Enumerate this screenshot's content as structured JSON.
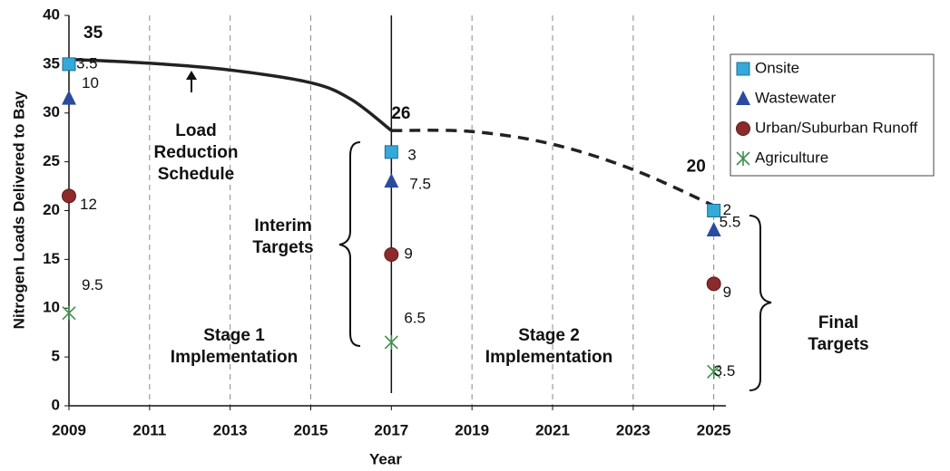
{
  "chart_data": {
    "type": "stacked-scatter",
    "xlabel": "Year",
    "ylabel": "Nitrogen Loads Delivered to Bay",
    "xlim": [
      2009,
      2025.3
    ],
    "xticks": [
      2009,
      2011,
      2013,
      2015,
      2017,
      2019,
      2021,
      2023,
      2025
    ],
    "ylim": [
      0,
      40
    ],
    "yticks": [
      0,
      5,
      10,
      15,
      20,
      25,
      30,
      35,
      40
    ],
    "x": [
      2009,
      2017,
      2025
    ],
    "totals": [
      35,
      26,
      20
    ],
    "series": [
      {
        "name": "Agriculture",
        "color": "#3f8f4f",
        "marker": "x",
        "values": [
          9.5,
          6.5,
          3.5
        ]
      },
      {
        "name": "Urban/Suburban Runoff",
        "color": "#8c2b2b",
        "marker": "circle",
        "values": [
          12,
          9,
          9
        ]
      },
      {
        "name": "Wastewater",
        "color": "#2a4b9e",
        "marker": "triangle",
        "values": [
          10,
          7.5,
          5.5
        ]
      },
      {
        "name": "Onsite",
        "color": "#35a9d8",
        "marker": "square",
        "values": [
          3.5,
          3,
          2
        ]
      }
    ],
    "schedule": {
      "solid": {
        "x": [
          2009,
          2011,
          2013,
          2015,
          2016,
          2017
        ],
        "values": [
          35.5,
          35.1,
          34.4,
          33.1,
          31.4,
          28.2
        ]
      },
      "dashed": {
        "x": [
          2017,
          2019,
          2021,
          2023,
          2025
        ],
        "values": [
          28.2,
          28.1,
          26.8,
          24.2,
          20.5
        ]
      }
    },
    "annotations": {
      "schedule": [
        "Load",
        "Reduction",
        "Schedule"
      ],
      "interim": [
        "Interim",
        "Targets"
      ],
      "stage1": [
        "Stage 1",
        "Implementation"
      ],
      "stage2": [
        "Stage 2",
        "Implementation"
      ],
      "final": [
        "Final",
        "Targets"
      ]
    }
  }
}
